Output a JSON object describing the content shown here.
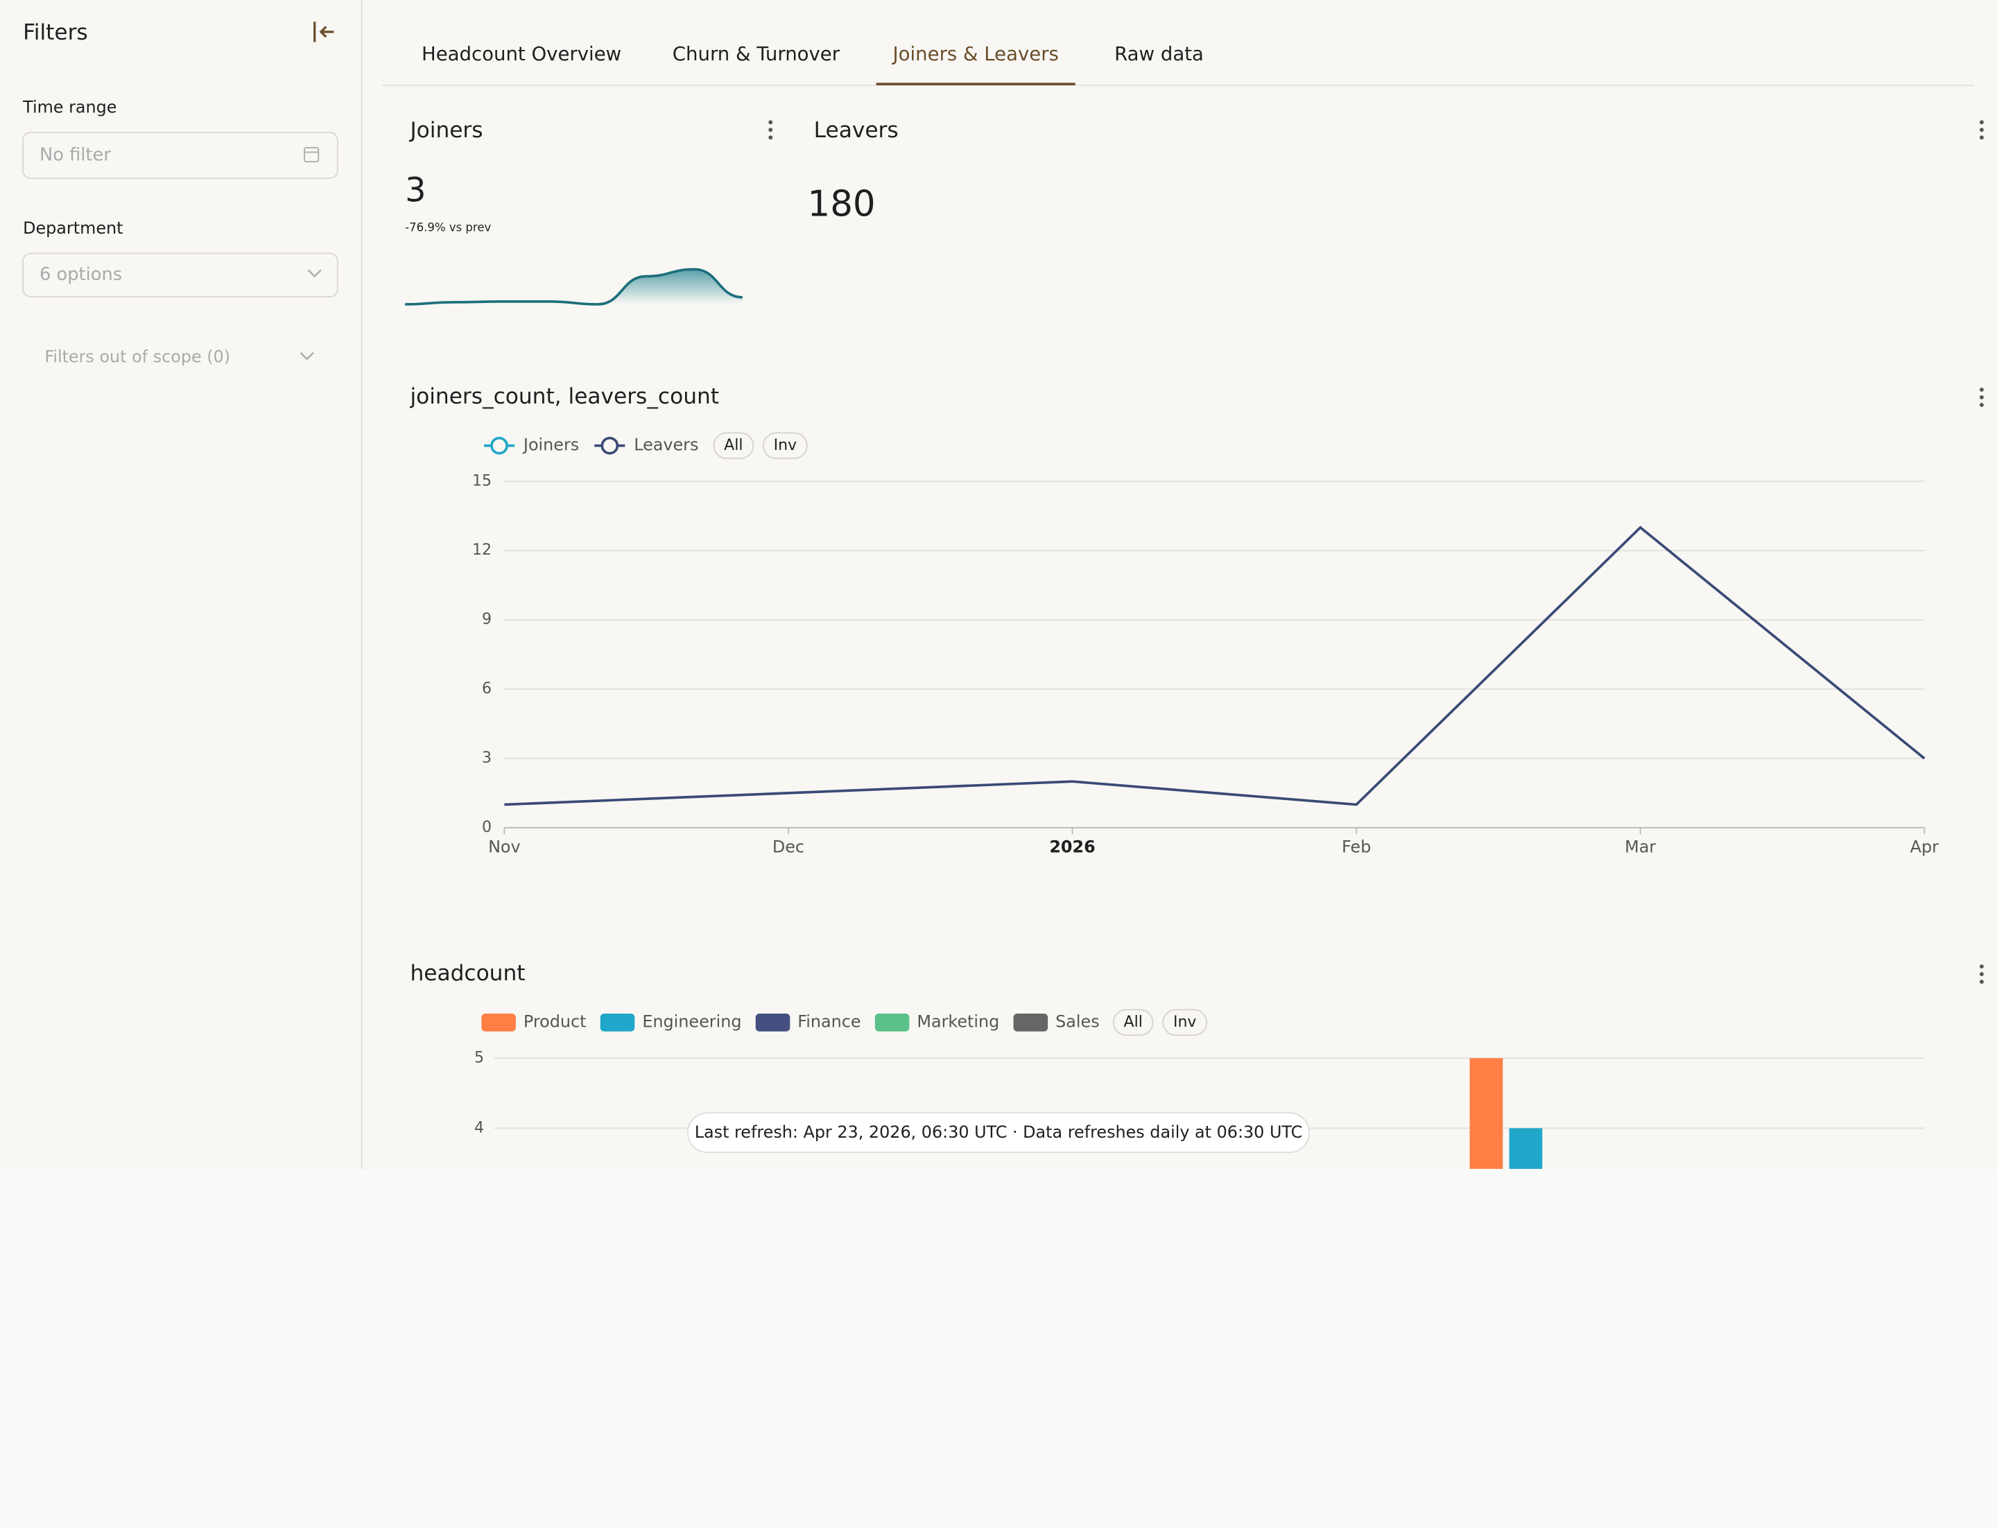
{
  "sidebar": {
    "title": "Filters",
    "time_range_label": "Time range",
    "time_range_placeholder": "No filter",
    "department_label": "Department",
    "department_placeholder": "6 options",
    "out_of_scope": "Filters out of scope (0)"
  },
  "tabs": [
    "Headcount Overview",
    "Churn & Turnover",
    "Joiners & Leavers",
    "Raw data"
  ],
  "active_tab": 2,
  "kpis": [
    {
      "title": "Joiners",
      "value": 3,
      "delta": "-76.9% vs prev",
      "trend": [
        0,
        0.3,
        0.4,
        0.4,
        0,
        4,
        5,
        1
      ]
    },
    {
      "title": "Leavers",
      "value": 180
    }
  ],
  "legend_buttons": [
    "All",
    "Inv"
  ],
  "chart_data": [
    {
      "type": "line",
      "title": "joiners_count, leavers_count",
      "categories": [
        "Nov",
        "Dec",
        "2026",
        "Feb",
        "Mar",
        "Apr"
      ],
      "series": [
        {
          "name": "Joiners",
          "color": "#20a7c9",
          "values": [
            null,
            null,
            null,
            null,
            null,
            null
          ]
        },
        {
          "name": "Leavers",
          "color": "#3b4a75",
          "values": [
            1,
            1.5,
            2,
            1,
            13,
            3
          ]
        }
      ],
      "ylim": [
        0,
        15
      ],
      "yticks": [
        0,
        3,
        6,
        9,
        12,
        15
      ],
      "grid": true
    },
    {
      "type": "bar",
      "title": "headcount",
      "categories": [
        null
      ],
      "series": [
        {
          "name": "Product",
          "color": "#ff7f45",
          "values": [
            5
          ]
        },
        {
          "name": "Engineering",
          "color": "#20a7c9",
          "values": [
            4
          ]
        },
        {
          "name": "Finance",
          "color": "#454f80",
          "values": [
            null
          ]
        },
        {
          "name": "Marketing",
          "color": "#5ac189",
          "values": [
            null
          ]
        },
        {
          "name": "Sales",
          "color": "#666666",
          "values": [
            null
          ]
        }
      ],
      "ylim": [
        0,
        5
      ],
      "yticks": [
        4,
        5
      ],
      "grid": true
    }
  ],
  "footer_note": "Last refresh: Apr 23, 2026, 06:30 UTC · Data refreshes daily at 06:30 UTC"
}
